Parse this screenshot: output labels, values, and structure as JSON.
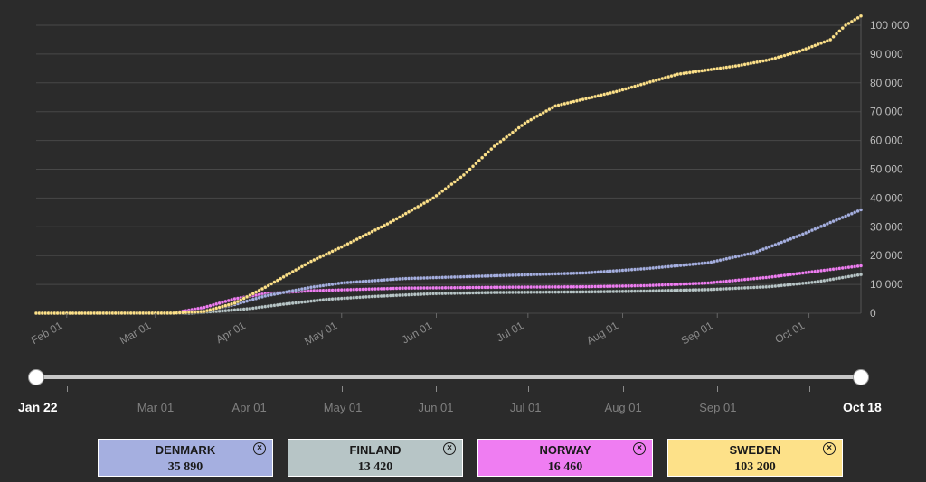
{
  "chart_data": {
    "type": "scatter",
    "title": "",
    "xlabel": "",
    "ylabel": "",
    "x_start": "Jan 22",
    "x_end": "Oct 18",
    "x_days": 270,
    "x_ticks": [
      {
        "label": "Feb 01",
        "day": 10
      },
      {
        "label": "Mar 01",
        "day": 39
      },
      {
        "label": "Apr 01",
        "day": 70
      },
      {
        "label": "May 01",
        "day": 100
      },
      {
        "label": "Jun 01",
        "day": 131
      },
      {
        "label": "Jul 01",
        "day": 161
      },
      {
        "label": "Aug 01",
        "day": 192
      },
      {
        "label": "Sep 01",
        "day": 223
      },
      {
        "label": "Oct 01",
        "day": 253
      }
    ],
    "ylim": [
      0,
      100000
    ],
    "y_ticks": [
      {
        "value": 0,
        "label": "0"
      },
      {
        "value": 10000,
        "label": "10 000"
      },
      {
        "value": 20000,
        "label": "20 000"
      },
      {
        "value": 30000,
        "label": "30 000"
      },
      {
        "value": 40000,
        "label": "40 000"
      },
      {
        "value": 50000,
        "label": "50 000"
      },
      {
        "value": 60000,
        "label": "60 000"
      },
      {
        "value": 70000,
        "label": "70 000"
      },
      {
        "value": 80000,
        "label": "80 000"
      },
      {
        "value": 90000,
        "label": "90 000"
      },
      {
        "value": 100000,
        "label": "100 000"
      }
    ],
    "series": [
      {
        "name": "Sweden",
        "color": "#fde189",
        "keypoints": [
          [
            0,
            0
          ],
          [
            45,
            50
          ],
          [
            55,
            600
          ],
          [
            65,
            3500
          ],
          [
            75,
            9000
          ],
          [
            90,
            18000
          ],
          [
            100,
            23000
          ],
          [
            115,
            31000
          ],
          [
            130,
            40000
          ],
          [
            140,
            48000
          ],
          [
            150,
            58000
          ],
          [
            160,
            66000
          ],
          [
            170,
            72000
          ],
          [
            190,
            77000
          ],
          [
            210,
            83000
          ],
          [
            230,
            86000
          ],
          [
            240,
            88000
          ],
          [
            250,
            91000
          ],
          [
            260,
            95000
          ],
          [
            265,
            100000
          ],
          [
            270,
            103200
          ]
        ]
      },
      {
        "name": "Denmark",
        "color": "#a5afe0",
        "keypoints": [
          [
            0,
            0
          ],
          [
            45,
            0
          ],
          [
            55,
            700
          ],
          [
            65,
            3000
          ],
          [
            75,
            6000
          ],
          [
            90,
            9000
          ],
          [
            100,
            10500
          ],
          [
            120,
            12000
          ],
          [
            150,
            13000
          ],
          [
            180,
            14000
          ],
          [
            200,
            15500
          ],
          [
            220,
            17500
          ],
          [
            235,
            21000
          ],
          [
            250,
            27000
          ],
          [
            260,
            31500
          ],
          [
            270,
            35890
          ]
        ]
      },
      {
        "name": "Norway",
        "color": "#ef7df2",
        "keypoints": [
          [
            0,
            0
          ],
          [
            45,
            100
          ],
          [
            55,
            2000
          ],
          [
            65,
            5000
          ],
          [
            75,
            6800
          ],
          [
            90,
            7800
          ],
          [
            120,
            8700
          ],
          [
            150,
            9000
          ],
          [
            180,
            9200
          ],
          [
            200,
            9600
          ],
          [
            220,
            10500
          ],
          [
            240,
            12500
          ],
          [
            255,
            14500
          ],
          [
            270,
            16460
          ]
        ]
      },
      {
        "name": "Finland",
        "color": "#b7c5c6",
        "keypoints": [
          [
            0,
            0
          ],
          [
            50,
            0
          ],
          [
            60,
            700
          ],
          [
            70,
            1600
          ],
          [
            80,
            3000
          ],
          [
            95,
            4800
          ],
          [
            110,
            5800
          ],
          [
            130,
            6800
          ],
          [
            150,
            7200
          ],
          [
            180,
            7400
          ],
          [
            200,
            7700
          ],
          [
            220,
            8200
          ],
          [
            240,
            9200
          ],
          [
            255,
            10800
          ],
          [
            270,
            13420
          ]
        ]
      }
    ]
  },
  "slider": {
    "start_label": "Jan 22",
    "end_label": "Oct 18",
    "ticks": [
      "Mar 01",
      "Apr 01",
      "May 01",
      "Jun 01",
      "Jul 01",
      "Aug 01",
      "Sep 01"
    ]
  },
  "cards": [
    {
      "name": "DENMARK",
      "value": "35 890",
      "color": "#a5afe0"
    },
    {
      "name": "FINLAND",
      "value": "13 420",
      "color": "#b7c5c6"
    },
    {
      "name": "NORWAY",
      "value": "16 460",
      "color": "#ef7df2"
    },
    {
      "name": "SWEDEN",
      "value": "103 200",
      "color": "#fde189"
    }
  ],
  "close_icon_symbol": "×"
}
